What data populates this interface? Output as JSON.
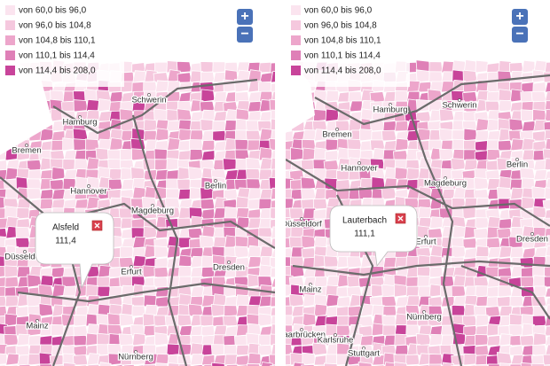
{
  "panels": [
    {
      "legend": [
        "von 60,0 bis 96,0",
        "von 96,0 bis 104,8",
        "von 104,8 bis 110,1",
        "von 110,1 bis 114,4",
        "von 114,4 bis 208,0"
      ],
      "zoom": [
        "+",
        "−"
      ],
      "cities": [
        "Hamburg",
        "Schwerin",
        "Bremen",
        "Hannover",
        "Magdeburg",
        "Berlin",
        "Düsseldorf",
        "Erfurt",
        "Dresden",
        "Mainz",
        "Nürnberg"
      ],
      "popup": {
        "name": "Alsfeld",
        "value": "111,4"
      }
    },
    {
      "legend": [
        "von 60,0 bis 96,0",
        "von 96,0 bis 104,8",
        "von 104,8 bis 110,1",
        "von 110,1 bis 114,4",
        "von 114,4 bis 208,0"
      ],
      "zoom": [
        "+",
        "−"
      ],
      "cities": [
        "Hamburg",
        "Schwerin",
        "Bremen",
        "Hannover",
        "Magdeburg",
        "Berlin",
        "Düsseldorf",
        "Erfurt",
        "Dresden",
        "Mainz",
        "Nürnberg",
        "Saarbrücken",
        "Karlsruhe",
        "Stuttgart"
      ],
      "popup": {
        "name": "Lauterbach",
        "value": "111,1"
      }
    }
  ]
}
